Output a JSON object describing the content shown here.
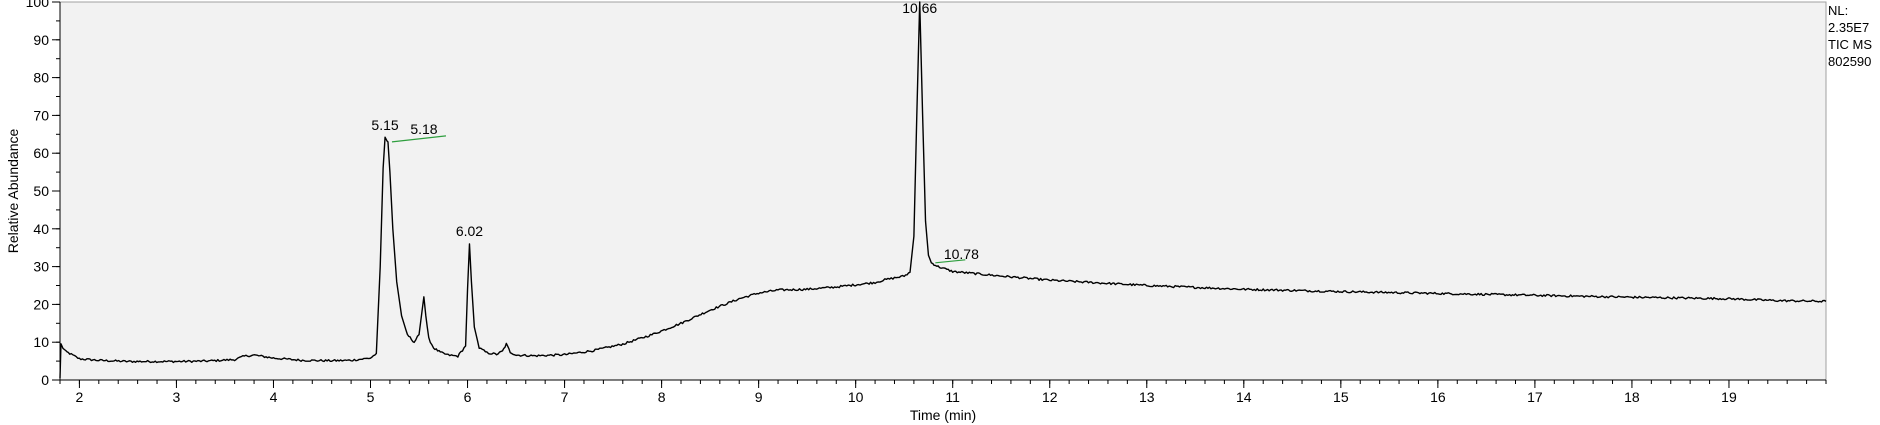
{
  "header": {
    "nl_label": "NL:",
    "nl_value": "2.35E7",
    "trace_label": "TIC  MS",
    "sample_id": "802590"
  },
  "chart_data": {
    "type": "line",
    "title": "",
    "xlabel": "Time (min)",
    "ylabel": "Relative Abundance",
    "xlim": [
      1.8,
      20.0
    ],
    "ylim": [
      0,
      100
    ],
    "x_ticks": [
      2,
      3,
      4,
      5,
      6,
      7,
      8,
      9,
      10,
      11,
      12,
      13,
      14,
      15,
      16,
      17,
      18,
      19
    ],
    "x_minor_step": 0.2,
    "y_ticks": [
      0,
      10,
      20,
      30,
      40,
      50,
      60,
      70,
      80,
      90,
      100
    ],
    "y_minor_step": 5,
    "grid": false,
    "background": "#f2f2f2",
    "line_color": "#000000",
    "annotation_color": "#2e9e3e",
    "series": [
      {
        "x": [
          1.8,
          1.81,
          1.83,
          1.86,
          1.9,
          1.95,
          2.0,
          2.2,
          2.5,
          3.0,
          3.3,
          3.6,
          3.7,
          3.8,
          4.0,
          4.3,
          4.6,
          4.8,
          4.9,
          5.0,
          5.06,
          5.1,
          5.13,
          5.15,
          5.17,
          5.18,
          5.2,
          5.23,
          5.27,
          5.32,
          5.38,
          5.45,
          5.5,
          5.53,
          5.55,
          5.57,
          5.6,
          5.65,
          5.72,
          5.8,
          5.9,
          5.98,
          6.0,
          6.02,
          6.04,
          6.07,
          6.12,
          6.2,
          6.3,
          6.36,
          6.4,
          6.44,
          6.5,
          6.7,
          7.0,
          7.3,
          7.6,
          7.9,
          8.2,
          8.5,
          8.8,
          9.0,
          9.2,
          9.5,
          9.8,
          10.0,
          10.2,
          10.3,
          10.4,
          10.5,
          10.56,
          10.6,
          10.63,
          10.66,
          10.69,
          10.72,
          10.75,
          10.78,
          10.85,
          11.0,
          11.5,
          12.0,
          13.0,
          14.0,
          15.0,
          16.0,
          17.0,
          18.0,
          19.0,
          19.5,
          20.0
        ],
        "y": [
          0.5,
          9.5,
          8.5,
          7.5,
          7.0,
          6.3,
          5.6,
          5.2,
          4.9,
          4.9,
          5.0,
          5.4,
          6.3,
          6.6,
          5.8,
          5.2,
          5.1,
          5.2,
          5.5,
          5.8,
          7.0,
          30.0,
          56.0,
          64.0,
          63.0,
          63.0,
          55.0,
          40.0,
          26.0,
          17.0,
          12.0,
          10.0,
          12.0,
          18.0,
          22.0,
          17.0,
          11.0,
          8.5,
          7.3,
          6.6,
          6.3,
          9.0,
          24.0,
          36.0,
          26.0,
          14.0,
          8.5,
          7.2,
          6.8,
          7.6,
          9.5,
          7.4,
          6.6,
          6.4,
          6.7,
          7.8,
          9.5,
          12.0,
          15.0,
          18.5,
          21.5,
          23.0,
          23.8,
          24.0,
          24.6,
          25.2,
          25.8,
          26.5,
          27.0,
          27.5,
          28.5,
          38.0,
          70.0,
          100.0,
          70.0,
          42.0,
          33.0,
          31.0,
          30.0,
          28.7,
          27.5,
          26.4,
          25.0,
          24.0,
          23.4,
          22.9,
          22.4,
          21.9,
          21.5,
          21.0,
          20.8
        ]
      }
    ],
    "peak_labels": [
      {
        "x": 5.15,
        "y": 64,
        "label": "5.15"
      },
      {
        "x": 5.18,
        "y": 63,
        "label": "5.18"
      },
      {
        "x": 6.02,
        "y": 36,
        "label": "6.02"
      },
      {
        "x": 10.66,
        "y": 100,
        "label": "10.66"
      },
      {
        "x": 10.78,
        "y": 31,
        "label": "10.78"
      }
    ]
  }
}
